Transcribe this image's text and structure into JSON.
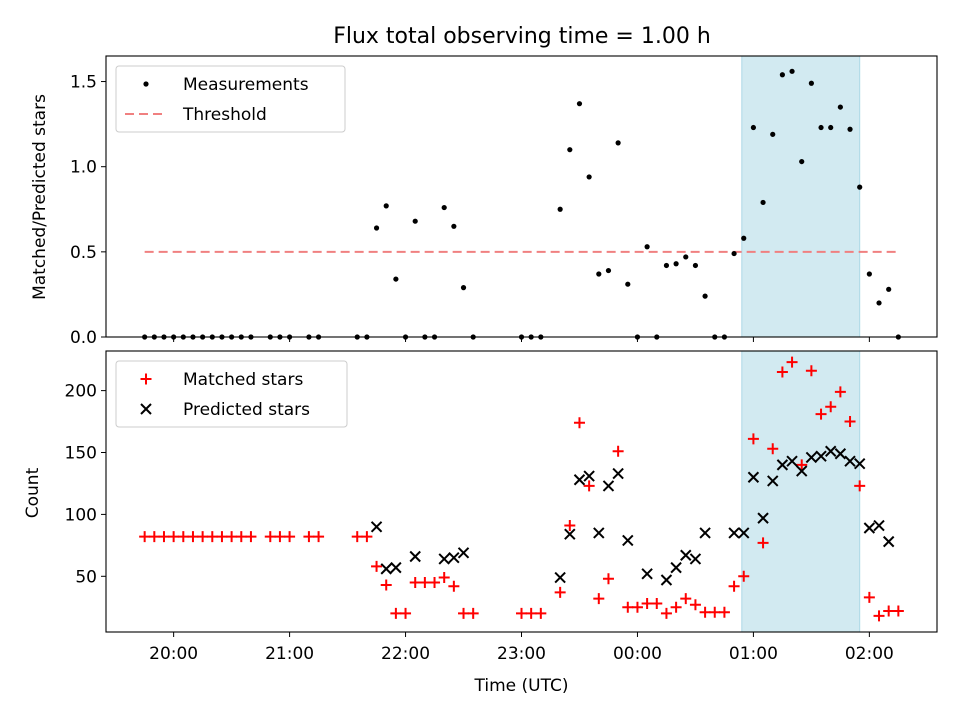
{
  "title": "Flux total observing time = 1.00 h",
  "colors": {
    "measurement": "#000000",
    "threshold": "#f08080",
    "matched": "#ff0000",
    "predicted": "#000000",
    "highlight": "#add8e6"
  },
  "chart_data": [
    {
      "type": "scatter",
      "ylabel": "Matched/Predicted stars",
      "xlim": [
        "19:25",
        "02:35"
      ],
      "ylim": [
        0,
        1.65
      ],
      "yticks": [
        0,
        0.5,
        1.0,
        1.5
      ],
      "ytick_labels": [
        "0.0",
        "0.5",
        "1.0",
        "1.5"
      ],
      "xticks": [
        "20:00",
        "21:00",
        "22:00",
        "23:00",
        "00:00",
        "01:00",
        "02:00"
      ],
      "legend_position": "top-left",
      "highlight_span": [
        "00:54",
        "01:55"
      ],
      "threshold": {
        "name": "Threshold",
        "value": 0.5,
        "x_range": [
          "19:45",
          "02:15"
        ]
      },
      "series": [
        {
          "name": "Measurements",
          "points": [
            [
              "19:45",
              0
            ],
            [
              "19:50",
              0
            ],
            [
              "19:55",
              0
            ],
            [
              "20:00",
              0
            ],
            [
              "20:05",
              0
            ],
            [
              "20:10",
              0
            ],
            [
              "20:15",
              0
            ],
            [
              "20:20",
              0
            ],
            [
              "20:25",
              0
            ],
            [
              "20:30",
              0
            ],
            [
              "20:35",
              0
            ],
            [
              "20:40",
              0
            ],
            [
              "20:50",
              0
            ],
            [
              "20:55",
              0
            ],
            [
              "21:00",
              0
            ],
            [
              "21:10",
              0
            ],
            [
              "21:15",
              0
            ],
            [
              "21:35",
              0
            ],
            [
              "21:40",
              0
            ],
            [
              "21:45",
              0.64
            ],
            [
              "21:50",
              0.77
            ],
            [
              "21:55",
              0.34
            ],
            [
              "22:00",
              0
            ],
            [
              "22:05",
              0.68
            ],
            [
              "22:10",
              0
            ],
            [
              "22:15",
              0
            ],
            [
              "22:20",
              0.76
            ],
            [
              "22:25",
              0.65
            ],
            [
              "22:30",
              0.29
            ],
            [
              "22:35",
              0
            ],
            [
              "23:00",
              0
            ],
            [
              "23:05",
              0
            ],
            [
              "23:10",
              0
            ],
            [
              "23:20",
              0.75
            ],
            [
              "23:25",
              1.1
            ],
            [
              "23:30",
              1.37
            ],
            [
              "23:35",
              0.94
            ],
            [
              "23:40",
              0.37
            ],
            [
              "23:45",
              0.39
            ],
            [
              "23:50",
              1.14
            ],
            [
              "23:55",
              0.31
            ],
            [
              "00:00",
              0
            ],
            [
              "00:05",
              0.53
            ],
            [
              "00:10",
              0
            ],
            [
              "00:15",
              0.42
            ],
            [
              "00:20",
              0.43
            ],
            [
              "00:25",
              0.47
            ],
            [
              "00:30",
              0.42
            ],
            [
              "00:35",
              0.24
            ],
            [
              "00:40",
              0
            ],
            [
              "00:45",
              0
            ],
            [
              "00:50",
              0.49
            ],
            [
              "00:55",
              0.58
            ],
            [
              "01:00",
              1.23
            ],
            [
              "01:05",
              0.79
            ],
            [
              "01:10",
              1.19
            ],
            [
              "01:15",
              1.54
            ],
            [
              "01:20",
              1.56
            ],
            [
              "01:25",
              1.03
            ],
            [
              "01:30",
              1.49
            ],
            [
              "01:35",
              1.23
            ],
            [
              "01:40",
              1.23
            ],
            [
              "01:45",
              1.35
            ],
            [
              "01:50",
              1.22
            ],
            [
              "01:55",
              0.88
            ],
            [
              "02:00",
              0.37
            ],
            [
              "02:05",
              0.2
            ],
            [
              "02:10",
              0.28
            ],
            [
              "02:15",
              0
            ]
          ]
        }
      ]
    },
    {
      "type": "scatter",
      "xlabel": "Time (UTC)",
      "ylabel": "Count",
      "xlim": [
        "19:25",
        "02:35"
      ],
      "ylim": [
        5,
        232
      ],
      "yticks": [
        50,
        100,
        150,
        200
      ],
      "ytick_labels": [
        "50",
        "100",
        "150",
        "200"
      ],
      "xticks": [
        "20:00",
        "21:00",
        "22:00",
        "23:00",
        "00:00",
        "01:00",
        "02:00"
      ],
      "legend_position": "top-left",
      "highlight_span": [
        "00:54",
        "01:55"
      ],
      "series": [
        {
          "name": "Matched stars",
          "points": [
            [
              "19:45",
              82
            ],
            [
              "19:50",
              82
            ],
            [
              "19:55",
              82
            ],
            [
              "20:00",
              82
            ],
            [
              "20:05",
              82
            ],
            [
              "20:10",
              82
            ],
            [
              "20:15",
              82
            ],
            [
              "20:20",
              82
            ],
            [
              "20:25",
              82
            ],
            [
              "20:30",
              82
            ],
            [
              "20:35",
              82
            ],
            [
              "20:40",
              82
            ],
            [
              "20:50",
              82
            ],
            [
              "20:55",
              82
            ],
            [
              "21:00",
              82
            ],
            [
              "21:10",
              82
            ],
            [
              "21:15",
              82
            ],
            [
              "21:35",
              82
            ],
            [
              "21:40",
              82
            ],
            [
              "21:45",
              58
            ],
            [
              "21:50",
              43
            ],
            [
              "21:55",
              20
            ],
            [
              "22:00",
              20
            ],
            [
              "22:05",
              45
            ],
            [
              "22:10",
              45
            ],
            [
              "22:15",
              45
            ],
            [
              "22:20",
              49
            ],
            [
              "22:25",
              42
            ],
            [
              "22:30",
              20
            ],
            [
              "22:35",
              20
            ],
            [
              "23:00",
              20
            ],
            [
              "23:05",
              20
            ],
            [
              "23:10",
              20
            ],
            [
              "23:20",
              37
            ],
            [
              "23:25",
              91
            ],
            [
              "23:30",
              174
            ],
            [
              "23:35",
              123
            ],
            [
              "23:40",
              32
            ],
            [
              "23:45",
              48
            ],
            [
              "23:50",
              151
            ],
            [
              "23:55",
              25
            ],
            [
              "00:00",
              25
            ],
            [
              "00:05",
              28
            ],
            [
              "00:10",
              28
            ],
            [
              "00:15",
              20
            ],
            [
              "00:20",
              25
            ],
            [
              "00:25",
              32
            ],
            [
              "00:30",
              27
            ],
            [
              "00:35",
              21
            ],
            [
              "00:40",
              21
            ],
            [
              "00:45",
              21
            ],
            [
              "00:50",
              42
            ],
            [
              "00:55",
              50
            ],
            [
              "01:00",
              161
            ],
            [
              "01:05",
              77
            ],
            [
              "01:10",
              153
            ],
            [
              "01:15",
              215
            ],
            [
              "01:20",
              223
            ],
            [
              "01:25",
              140
            ],
            [
              "01:30",
              216
            ],
            [
              "01:35",
              181
            ],
            [
              "01:40",
              187
            ],
            [
              "01:45",
              199
            ],
            [
              "01:50",
              175
            ],
            [
              "01:55",
              123
            ],
            [
              "02:00",
              33
            ],
            [
              "02:05",
              18
            ],
            [
              "02:10",
              22
            ],
            [
              "02:15",
              22
            ]
          ]
        },
        {
          "name": "Predicted stars",
          "points": [
            [
              "21:45",
              90
            ],
            [
              "21:50",
              56
            ],
            [
              "21:55",
              57
            ],
            [
              "22:05",
              66
            ],
            [
              "22:20",
              64
            ],
            [
              "22:25",
              65
            ],
            [
              "22:30",
              69
            ],
            [
              "23:20",
              49
            ],
            [
              "23:25",
              84
            ],
            [
              "23:30",
              128
            ],
            [
              "23:35",
              131
            ],
            [
              "23:40",
              85
            ],
            [
              "23:45",
              123
            ],
            [
              "23:50",
              133
            ],
            [
              "23:55",
              79
            ],
            [
              "00:05",
              52
            ],
            [
              "00:15",
              47
            ],
            [
              "00:20",
              57
            ],
            [
              "00:25",
              67
            ],
            [
              "00:30",
              64
            ],
            [
              "00:35",
              85
            ],
            [
              "00:50",
              85
            ],
            [
              "00:55",
              85
            ],
            [
              "01:00",
              130
            ],
            [
              "01:05",
              97
            ],
            [
              "01:10",
              127
            ],
            [
              "01:15",
              140
            ],
            [
              "01:20",
              143
            ],
            [
              "01:25",
              135
            ],
            [
              "01:30",
              146
            ],
            [
              "01:35",
              147
            ],
            [
              "01:40",
              151
            ],
            [
              "01:45",
              149
            ],
            [
              "01:50",
              143
            ],
            [
              "01:55",
              141
            ],
            [
              "02:00",
              89
            ],
            [
              "02:05",
              91
            ],
            [
              "02:10",
              78
            ]
          ]
        }
      ]
    }
  ]
}
